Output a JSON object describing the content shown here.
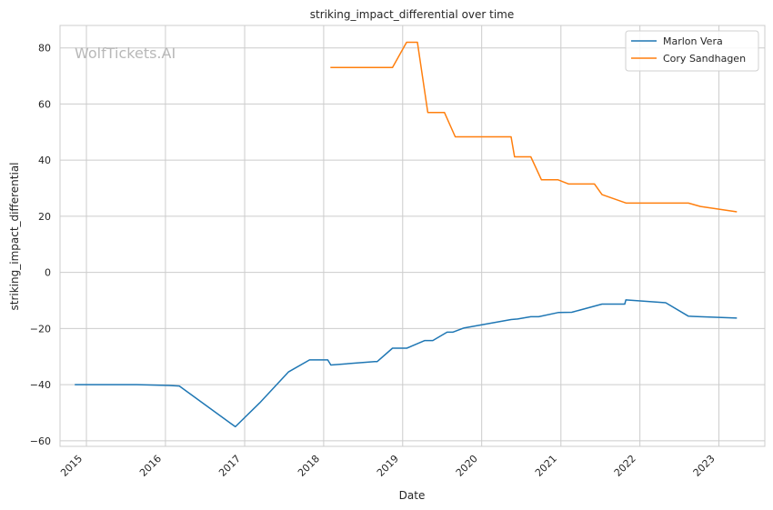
{
  "chart_data": {
    "type": "line",
    "title": "striking_impact_differential over time",
    "xlabel": "Date",
    "ylabel": "striking_impact_differential",
    "watermark": "WolfTickets.AI",
    "xlim": [
      "2014-09-01",
      "2023-08-01"
    ],
    "ylim": [
      -62,
      88
    ],
    "x_ticks": [
      "2015",
      "2016",
      "2017",
      "2018",
      "2019",
      "2020",
      "2021",
      "2022",
      "2023"
    ],
    "y_ticks": [
      -60,
      -40,
      -20,
      0,
      20,
      40,
      60,
      80
    ],
    "y_tick_labels": [
      "−60",
      "−40",
      "−20",
      "0",
      "20",
      "40",
      "60",
      "80"
    ],
    "grid": true,
    "legend_position": "top-right",
    "series": [
      {
        "name": "Marlon Vera",
        "color": "#1f77b4",
        "points": [
          [
            "2014-11-08",
            -40
          ],
          [
            "2015-08-23",
            -40
          ],
          [
            "2016-01-17",
            -40.3
          ],
          [
            "2016-03-05",
            -40.5
          ],
          [
            "2016-11-19",
            -55
          ],
          [
            "2017-03-11",
            -46.5
          ],
          [
            "2017-07-22",
            -35.5
          ],
          [
            "2017-10-28",
            -31.2
          ],
          [
            "2018-01-20",
            -31.2
          ],
          [
            "2018-02-03",
            -33
          ],
          [
            "2018-08-25",
            -31.8
          ],
          [
            "2018-09-05",
            -31.8
          ],
          [
            "2018-11-15",
            -27
          ],
          [
            "2019-01-20",
            -27
          ],
          [
            "2019-04-13",
            -24.3
          ],
          [
            "2019-05-20",
            -24.3
          ],
          [
            "2019-07-25",
            -21.3
          ],
          [
            "2019-08-20",
            -21.3
          ],
          [
            "2019-10-12",
            -19.8
          ],
          [
            "2020-05-16",
            -16.8
          ],
          [
            "2020-06-15",
            -16.6
          ],
          [
            "2020-08-15",
            -15.8
          ],
          [
            "2020-09-20",
            -15.8
          ],
          [
            "2020-12-19",
            -14.3
          ],
          [
            "2021-02-20",
            -14.2
          ],
          [
            "2021-07-10",
            -11.3
          ],
          [
            "2021-10-23",
            -11.3
          ],
          [
            "2021-10-28",
            -9.8
          ],
          [
            "2022-04-30",
            -10.8
          ],
          [
            "2022-08-13",
            -15.6
          ],
          [
            "2022-09-10",
            -15.7
          ],
          [
            "2023-03-25",
            -16.3
          ]
        ]
      },
      {
        "name": "Cory Sandhagen",
        "color": "#ff7f0e",
        "points": [
          [
            "2018-02-01",
            73
          ],
          [
            "2018-11-15",
            73
          ],
          [
            "2019-01-19",
            82
          ],
          [
            "2019-03-10",
            82
          ],
          [
            "2019-04-27",
            57
          ],
          [
            "2019-07-13",
            57
          ],
          [
            "2019-09-01",
            48.3
          ],
          [
            "2020-05-16",
            48.3
          ],
          [
            "2020-06-01",
            41.2
          ],
          [
            "2020-08-15",
            41.2
          ],
          [
            "2020-10-03",
            33
          ],
          [
            "2020-12-19",
            33
          ],
          [
            "2021-02-06",
            31.5
          ],
          [
            "2021-06-05",
            31.5
          ],
          [
            "2021-07-10",
            27.7
          ],
          [
            "2021-10-30",
            24.7
          ],
          [
            "2022-08-13",
            24.7
          ],
          [
            "2022-10-08",
            23.5
          ],
          [
            "2023-03-25",
            21.6
          ]
        ]
      }
    ]
  }
}
